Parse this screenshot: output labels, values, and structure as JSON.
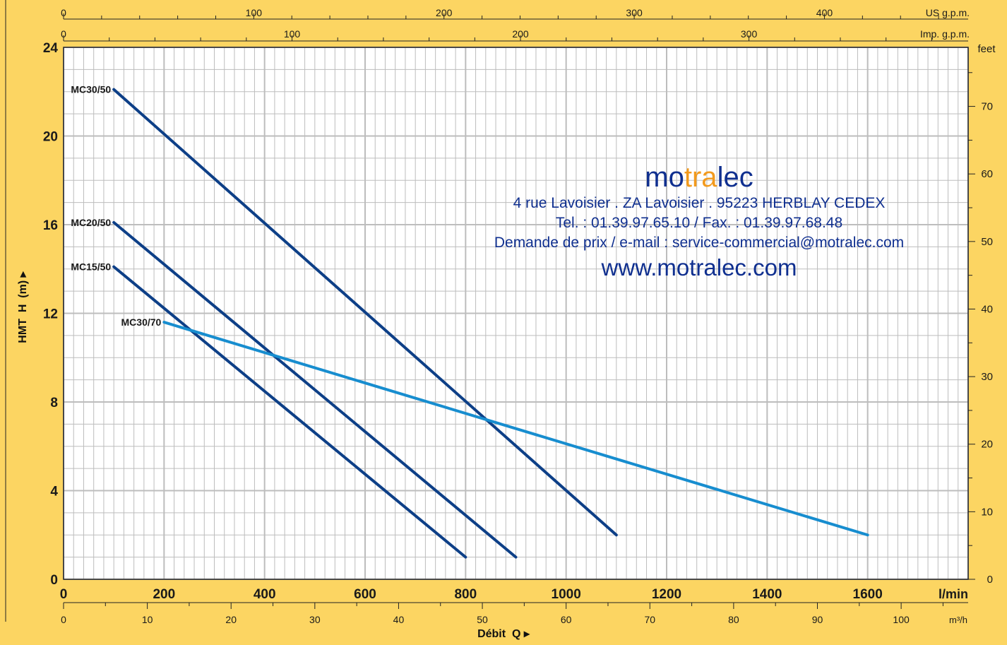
{
  "chart_data": {
    "type": "line",
    "xlabel": "Débit",
    "xlabel_symbol": "Q",
    "x_unit": "l/min",
    "ylabel": "HMT",
    "ylabel_symbol": "H",
    "y_unit": "(m)",
    "xlim": [
      0,
      1800
    ],
    "ylim": [
      0,
      24
    ],
    "x_ticks": [
      0,
      200,
      400,
      600,
      800,
      1000,
      1200,
      1400,
      1600
    ],
    "y_ticks": [
      0,
      4,
      8,
      12,
      16,
      20,
      24
    ],
    "grid": true,
    "secondary_axes": {
      "top_us": {
        "label": "US g.p.m.",
        "ticks": [
          0,
          100,
          200,
          300,
          400
        ],
        "factor_lpm": 3.785
      },
      "top_imp": {
        "label": "Imp. g.p.m.",
        "ticks": [
          0,
          100,
          200,
          300
        ],
        "factor_lpm": 4.546
      },
      "right_feet": {
        "label": "feet",
        "ticks": [
          0,
          10,
          20,
          30,
          40,
          50,
          60,
          70
        ],
        "factor_m": 0.3048
      },
      "bottom_m3h": {
        "label": "m³/h",
        "ticks": [
          0,
          10,
          20,
          30,
          40,
          50,
          60,
          70,
          80,
          90,
          100
        ],
        "factor_lpm": 16.6667
      }
    },
    "series": [
      {
        "name": "MC30/50",
        "color": "#0d3f87",
        "x": [
          100,
          1100
        ],
        "y": [
          22.1,
          2.0
        ]
      },
      {
        "name": "MC20/50",
        "color": "#0d3f87",
        "x": [
          100,
          900
        ],
        "y": [
          16.1,
          1.0
        ]
      },
      {
        "name": "MC15/50",
        "color": "#0d3f87",
        "x": [
          100,
          800
        ],
        "y": [
          14.1,
          1.0
        ]
      },
      {
        "name": "MC30/70",
        "color": "#178dcf",
        "x": [
          200,
          1600
        ],
        "y": [
          11.6,
          2.0
        ]
      }
    ]
  },
  "brand": {
    "logo_a": "mo",
    "logo_b": "tra",
    "logo_c": "lec",
    "address": "4 rue Lavoisier . ZA Lavoisier . 95223 HERBLAY CEDEX",
    "phone": "Tel. : 01.39.97.65.10 / Fax. : 01.39.97.68.48",
    "email": "Demande de prix / e-mail : service-commercial@motralec.com",
    "url": "www.motralec.com"
  },
  "colors": {
    "background": "#fcd562",
    "plot": "#ffffff",
    "grid": "#bdbdbd",
    "dark_series": "#0d3f87",
    "light_series": "#178dcf"
  }
}
